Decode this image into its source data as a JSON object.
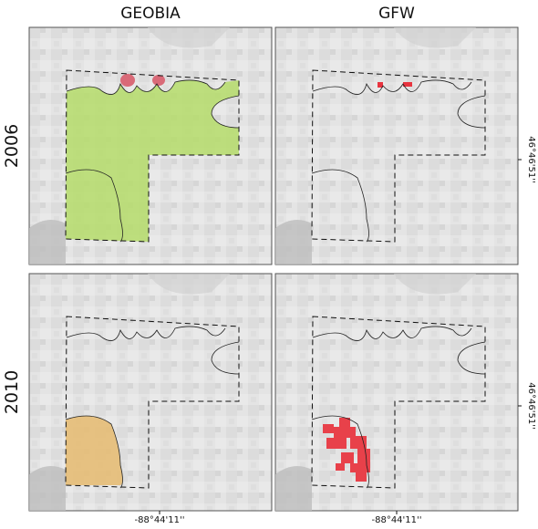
{
  "columns": [
    "GEOBIA",
    "GFW"
  ],
  "rows": [
    "2006",
    "2010"
  ],
  "x_coordinate_labels": [
    "-88°44'11''",
    "-88°44'11''"
  ],
  "y_coordinate_labels": [
    "46°46'51''",
    "46°46'51''"
  ]
}
